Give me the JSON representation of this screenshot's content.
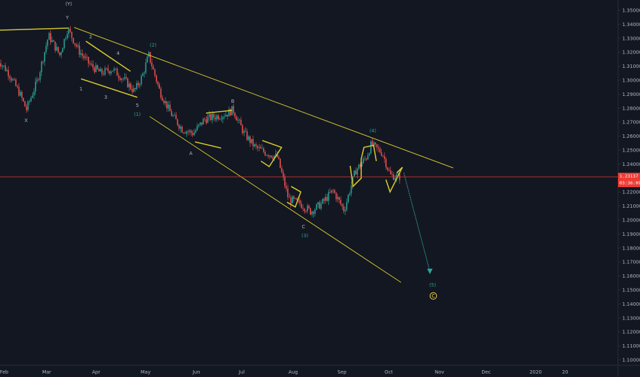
{
  "chart_data": {
    "type": "candlestick",
    "x_ticks": [
      "Feb",
      "Mar",
      "Apr",
      "May",
      "Jun",
      "Jul",
      "Aug",
      "Sep",
      "Oct",
      "Nov",
      "Dec",
      "2020",
      "20"
    ],
    "y_ticks": [
      "1.35000",
      "1.34000",
      "1.33000",
      "1.32000",
      "1.31000",
      "1.30000",
      "1.29000",
      "1.28000",
      "1.27000",
      "1.26000",
      "1.25000",
      "1.24000",
      "1.22000",
      "1.21000",
      "1.20000",
      "1.19000",
      "1.18000",
      "1.17000",
      "1.16000",
      "1.15000",
      "1.14000",
      "1.13000",
      "1.12000",
      "1.11000",
      "1.10000"
    ],
    "ylim": [
      1.096,
      1.356
    ],
    "last_price": "1.23137",
    "countdown": "03:36:09",
    "colors": {
      "up": "#26a69a",
      "down": "#ef5350",
      "trendline": "#d4c82e",
      "projection": "#26a69a",
      "price_line": "#ef3a33"
    },
    "wave_labels": [
      {
        "text": "(Y)",
        "color": "#b2b5be"
      },
      {
        "text": "Y",
        "color": "#b2b5be"
      },
      {
        "text": "X",
        "color": "#b2b5be"
      },
      {
        "text": "1",
        "color": "#b2b5be"
      },
      {
        "text": "2",
        "color": "#b2b5be"
      },
      {
        "text": "3",
        "color": "#b2b5be"
      },
      {
        "text": "4",
        "color": "#b2b5be"
      },
      {
        "text": "5",
        "color": "#b2b5be"
      },
      {
        "text": "(1)",
        "color": "#26a69a"
      },
      {
        "text": "(2)",
        "color": "#26a69a"
      },
      {
        "text": "A",
        "color": "#b2b5be"
      },
      {
        "text": "B",
        "color": "#b2b5be"
      },
      {
        "text": "C",
        "color": "#b2b5be"
      },
      {
        "text": "(3)",
        "color": "#26a69a"
      },
      {
        "text": "(4)",
        "color": "#26a69a"
      },
      {
        "text": "(5)",
        "color": "#26a69a"
      },
      {
        "text": "C",
        "color": "#f0d34a"
      }
    ],
    "series": [
      {
        "name": "",
        "x": [
          "2019-01-28",
          "2019-02-04",
          "2019-02-11",
          "2019-02-15",
          "2019-02-22",
          "2019-03-01",
          "2019-03-08",
          "2019-03-13",
          "2019-03-20",
          "2019-03-27",
          "2019-04-03",
          "2019-04-10",
          "2019-04-17",
          "2019-04-24",
          "2019-04-29",
          "2019-05-03",
          "2019-05-10",
          "2019-05-17",
          "2019-05-24",
          "2019-05-31",
          "2019-06-07",
          "2019-06-14",
          "2019-06-21",
          "2019-06-25",
          "2019-07-02",
          "2019-07-09",
          "2019-07-16",
          "2019-07-23",
          "2019-07-30",
          "2019-08-06",
          "2019-08-13",
          "2019-08-20",
          "2019-08-27",
          "2019-09-03",
          "2019-09-10",
          "2019-09-17",
          "2019-09-20",
          "2019-09-27",
          "2019-10-02",
          "2019-10-08"
        ],
        "values": [
          1.315,
          1.305,
          1.29,
          1.279,
          1.3,
          1.332,
          1.318,
          1.337,
          1.321,
          1.311,
          1.305,
          1.308,
          1.301,
          1.292,
          1.303,
          1.318,
          1.292,
          1.276,
          1.265,
          1.262,
          1.272,
          1.274,
          1.276,
          1.279,
          1.262,
          1.252,
          1.248,
          1.245,
          1.215,
          1.212,
          1.206,
          1.212,
          1.221,
          1.207,
          1.235,
          1.245,
          1.254,
          1.248,
          1.232,
          1.231
        ]
      }
    ]
  }
}
